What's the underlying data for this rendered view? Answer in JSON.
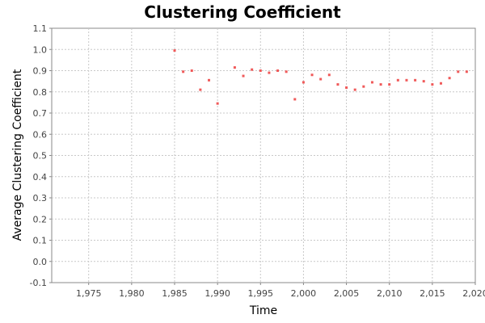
{
  "chart_data": {
    "type": "scatter",
    "title": "Clustering Coefficient",
    "xlabel": "Time",
    "ylabel": "Average Clustering Coefficient",
    "xlim": [
      1970.7,
      2020
    ],
    "ylim": [
      -0.1,
      1.1
    ],
    "xticks": [
      1975,
      1980,
      1985,
      1990,
      1995,
      2000,
      2005,
      2010,
      2015,
      2020
    ],
    "xtick_labels": [
      "1,975",
      "1,980",
      "1,985",
      "1,990",
      "1,995",
      "2,000",
      "2,005",
      "2,010",
      "2,015",
      "2,020"
    ],
    "yticks": [
      -0.1,
      0.0,
      0.1,
      0.2,
      0.3,
      0.4,
      0.5,
      0.6,
      0.7,
      0.8,
      0.9,
      1.0,
      1.1
    ],
    "ytick_labels": [
      "-0.1",
      "0.0",
      "0.1",
      "0.2",
      "0.3",
      "0.4",
      "0.5",
      "0.6",
      "0.7",
      "0.8",
      "0.9",
      "1.0",
      "1.1"
    ],
    "grid": true,
    "series": [
      {
        "color": "#f05a5a",
        "x": [
          1985,
          1986,
          1987,
          1988,
          1989,
          1990,
          1992,
          1993,
          1994,
          1995,
          1996,
          1997,
          1998,
          1999,
          2000,
          2001,
          2002,
          2003,
          2004,
          2005,
          2006,
          2007,
          2008,
          2009,
          2010,
          2011,
          2012,
          2013,
          2014,
          2015,
          2016,
          2017,
          2018,
          2019
        ],
        "y": [
          0.995,
          0.895,
          0.9,
          0.81,
          0.855,
          0.745,
          0.915,
          0.875,
          0.905,
          0.9,
          0.89,
          0.9,
          0.895,
          0.765,
          0.845,
          0.88,
          0.86,
          0.88,
          0.835,
          0.82,
          0.81,
          0.825,
          0.845,
          0.835,
          0.835,
          0.855,
          0.855,
          0.855,
          0.85,
          0.835,
          0.84,
          0.865,
          0.895,
          0.895
        ]
      }
    ]
  }
}
